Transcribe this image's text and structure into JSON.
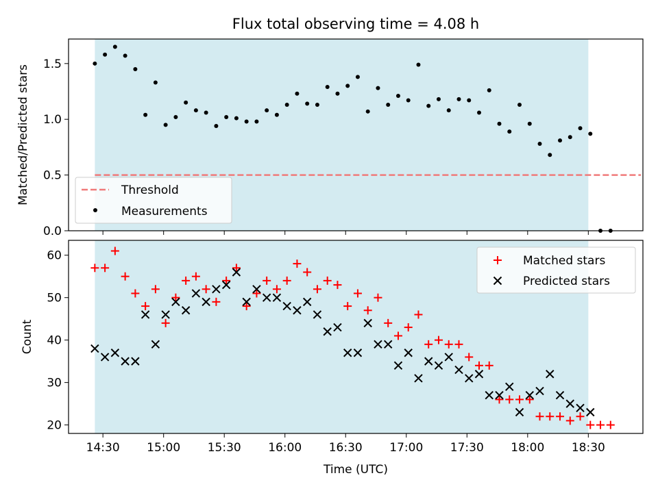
{
  "chart_data": [
    {
      "type": "scatter",
      "title": "Flux total observing time = 4.08 h",
      "xlabel": "",
      "ylabel": "Matched/Predicted stars",
      "ylim": [
        0,
        1.72
      ],
      "yticks": [
        "0.0",
        "0.5",
        "1.0",
        "1.5"
      ],
      "shaded_region_minutes": [
        866,
        1110
      ],
      "threshold": {
        "name": "Threshold",
        "value": 0.5,
        "x_range_minutes": [
          866,
          1136
        ],
        "color": "#f07a7a"
      },
      "series": [
        {
          "name": "Measurements",
          "color": "#000000",
          "x_minutes": [
            866,
            871,
            876,
            881,
            886,
            891,
            896,
            901,
            906,
            911,
            916,
            921,
            926,
            931,
            936,
            941,
            946,
            951,
            956,
            961,
            966,
            971,
            976,
            981,
            986,
            991,
            996,
            1001,
            1006,
            1011,
            1016,
            1021,
            1026,
            1031,
            1036,
            1041,
            1046,
            1051,
            1056,
            1061,
            1066,
            1071,
            1076,
            1081,
            1086,
            1091,
            1096,
            1101,
            1106,
            1111,
            1116,
            1121
          ],
          "values": [
            1.5,
            1.58,
            1.65,
            1.57,
            1.45,
            1.04,
            1.33,
            0.95,
            1.02,
            1.15,
            1.08,
            1.06,
            0.94,
            1.02,
            1.01,
            0.98,
            0.98,
            1.08,
            1.04,
            1.13,
            1.23,
            1.14,
            1.13,
            1.29,
            1.23,
            1.3,
            1.38,
            1.07,
            1.28,
            1.13,
            1.21,
            1.17,
            1.49,
            1.12,
            1.18,
            1.08,
            1.18,
            1.17,
            1.06,
            1.26,
            0.96,
            0.89,
            1.13,
            0.96,
            0.78,
            0.68,
            0.81,
            0.84,
            0.92,
            0.87,
            0.0,
            0.0
          ]
        }
      ],
      "legend": {
        "placement": "lower-left",
        "entries": [
          "Threshold",
          "Measurements"
        ]
      }
    },
    {
      "type": "scatter",
      "title": "",
      "xlabel": "Time (UTC)",
      "ylabel": "Count",
      "ylim": [
        18,
        63.5
      ],
      "yticks": [
        "20",
        "30",
        "40",
        "50",
        "60"
      ],
      "xlim_minutes": [
        853,
        1137
      ],
      "xticks": [
        {
          "m": 870,
          "label": "14:30"
        },
        {
          "m": 900,
          "label": "15:00"
        },
        {
          "m": 930,
          "label": "15:30"
        },
        {
          "m": 960,
          "label": "16:00"
        },
        {
          "m": 990,
          "label": "16:30"
        },
        {
          "m": 1020,
          "label": "17:00"
        },
        {
          "m": 1050,
          "label": "17:30"
        },
        {
          "m": 1080,
          "label": "18:00"
        },
        {
          "m": 1110,
          "label": "18:30"
        }
      ],
      "shaded_region_minutes": [
        866,
        1110
      ],
      "series": [
        {
          "name": "Matched stars",
          "marker": "plus",
          "color": "#ff0000",
          "x_minutes": [
            866,
            871,
            876,
            881,
            886,
            891,
            896,
            901,
            906,
            911,
            916,
            921,
            926,
            931,
            936,
            941,
            946,
            951,
            956,
            961,
            966,
            971,
            976,
            981,
            986,
            991,
            996,
            1001,
            1006,
            1011,
            1016,
            1021,
            1026,
            1031,
            1036,
            1041,
            1046,
            1051,
            1056,
            1061,
            1066,
            1071,
            1076,
            1081,
            1086,
            1091,
            1096,
            1101,
            1106,
            1111,
            1116,
            1121
          ],
          "values": [
            57,
            57,
            61,
            55,
            51,
            48,
            52,
            44,
            50,
            54,
            55,
            52,
            49,
            54,
            57,
            48,
            51,
            54,
            52,
            54,
            58,
            56,
            52,
            54,
            53,
            48,
            51,
            47,
            50,
            44,
            41,
            43,
            46,
            39,
            40,
            39,
            39,
            36,
            34,
            34,
            26,
            26,
            26,
            26,
            22,
            22,
            22,
            21,
            22,
            20,
            20,
            20
          ]
        },
        {
          "name": "Predicted stars",
          "marker": "x",
          "color": "#000000",
          "x_minutes": [
            866,
            871,
            876,
            881,
            886,
            891,
            896,
            901,
            906,
            911,
            916,
            921,
            926,
            931,
            936,
            941,
            946,
            951,
            956,
            961,
            966,
            971,
            976,
            981,
            986,
            991,
            996,
            1001,
            1006,
            1011,
            1016,
            1021,
            1026,
            1031,
            1036,
            1041,
            1046,
            1051,
            1056,
            1061,
            1066,
            1071,
            1076,
            1081,
            1086,
            1091,
            1096,
            1101,
            1106,
            1111
          ],
          "values": [
            38,
            36,
            37,
            35,
            35,
            46,
            39,
            46,
            49,
            47,
            51,
            49,
            52,
            53,
            56,
            49,
            52,
            50,
            50,
            48,
            47,
            49,
            46,
            42,
            43,
            37,
            37,
            44,
            39,
            39,
            34,
            37,
            31,
            35,
            34,
            36,
            33,
            31,
            32,
            27,
            27,
            29,
            23,
            27,
            28,
            32,
            27,
            25,
            24,
            23
          ]
        }
      ],
      "legend": {
        "placement": "top-right",
        "entries": [
          "Matched stars",
          "Predicted stars"
        ]
      }
    }
  ],
  "colors": {
    "shade": "#d4ebf1"
  }
}
